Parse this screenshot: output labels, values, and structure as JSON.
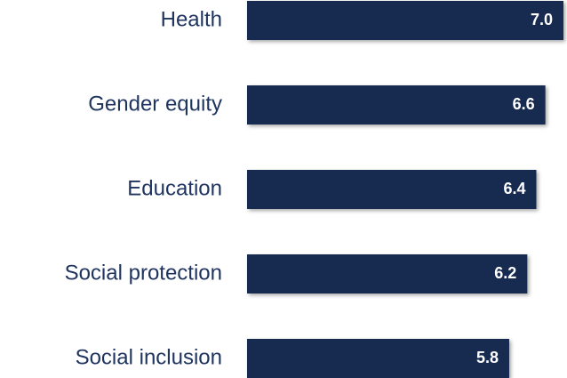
{
  "chart_data": {
    "type": "bar",
    "orientation": "horizontal",
    "categories": [
      "Health",
      "Gender equity",
      "Education",
      "Social protection",
      "Social inclusion"
    ],
    "values": [
      7.0,
      6.6,
      6.4,
      6.2,
      5.8
    ],
    "value_labels": [
      "7.0",
      "6.6",
      "6.4",
      "6.2",
      "5.8"
    ],
    "color": "#172a4f",
    "xlim": [
      0,
      7
    ]
  }
}
